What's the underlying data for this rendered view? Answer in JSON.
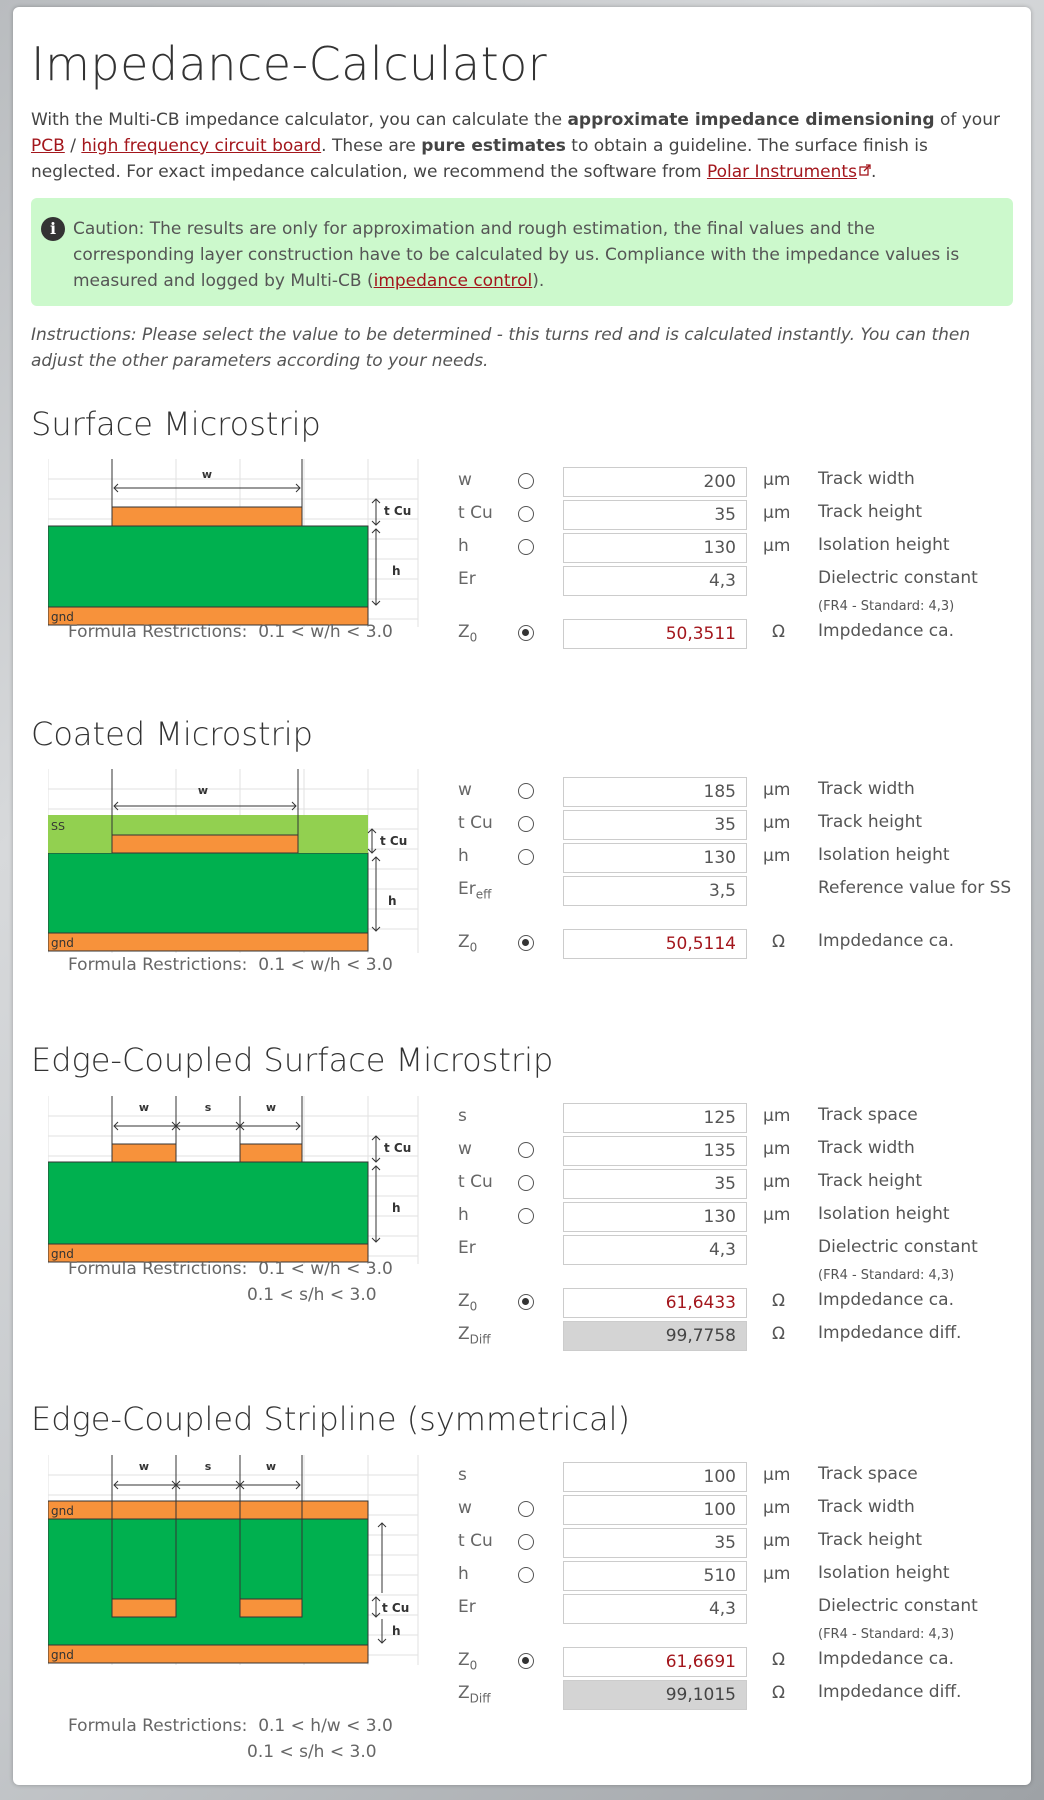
{
  "title": "Impedance-Calculator",
  "intro": {
    "p1": "With the Multi-CB impedance calculator, you can calculate the ",
    "b1": "approximate impedance dimensioning",
    "p2": " of your ",
    "link_pcb": "PCB",
    "sep": " / ",
    "link_hf": "high frequency circuit board",
    "p3": ". These are ",
    "b2": "pure estimates",
    "p4": " to obtain a guideline. The surface finish is neglected. For exact impedance calculation, we recommend the software from ",
    "link_polar": "Polar Instruments",
    "p5": "."
  },
  "alert": {
    "text": "Caution: The results are only for approximation and rough estimation, the final values and the corresponding layer construction have to be calculated by us. Compliance with the impedance values is measured and logged by Multi-CB (",
    "link": "impedance control",
    "end": ")."
  },
  "instructions": "Instructions: Please select the value to be determined - this turns red and is calculated instantly. You can then adjust the other parameters according to your needs.",
  "colors": {
    "copper": "#f7923b",
    "dielectric": "#00b04f",
    "soldermask": "#92d050",
    "result": "#a3161c",
    "alert_bg": "#ccf9cc"
  },
  "diagram_labels": {
    "w": "w",
    "s": "s",
    "tcu": "t Cu",
    "h": "h",
    "gnd": "gnd",
    "ss": "SS"
  },
  "restrictions_label": "Formula Restrictions:",
  "sections": {
    "surface": {
      "title": "Surface Microstrip",
      "restrict1": "0.1 < w/h < 3.0",
      "w": {
        "sym": "w",
        "value": "200",
        "unit": "µm",
        "label": "Track width"
      },
      "t": {
        "sym": "t Cu",
        "value": "35",
        "unit": "µm",
        "label": "Track height"
      },
      "h": {
        "sym": "h",
        "value": "130",
        "unit": "µm",
        "label": "Isolation height"
      },
      "er": {
        "sym": "Er",
        "value": "4,3",
        "label": "Dielectric constant",
        "note": "(FR4 - Standard: 4,3)"
      },
      "z0": {
        "sym": "Z",
        "sub": "0",
        "value": "50,3511",
        "unit": "Ω",
        "label": "Impdedance ca."
      }
    },
    "coated": {
      "title": "Coated Microstrip",
      "restrict1": "0.1 < w/h < 3.0",
      "w": {
        "sym": "w",
        "value": "185",
        "unit": "µm",
        "label": "Track width"
      },
      "t": {
        "sym": "t Cu",
        "value": "35",
        "unit": "µm",
        "label": "Track height"
      },
      "h": {
        "sym": "h",
        "value": "130",
        "unit": "µm",
        "label": "Isolation height"
      },
      "er": {
        "sym": "Er",
        "sub": "eff",
        "value": "3,5",
        "label": "Reference value for SS"
      },
      "z0": {
        "sym": "Z",
        "sub": "0",
        "value": "50,5114",
        "unit": "Ω",
        "label": "Impdedance ca."
      }
    },
    "edge_surface": {
      "title": "Edge-Coupled Surface Microstrip",
      "restrict1": "0.1 < w/h < 3.0",
      "restrict2": "0.1 < s/h < 3.0",
      "s": {
        "sym": "s",
        "value": "125",
        "unit": "µm",
        "label": "Track space"
      },
      "w": {
        "sym": "w",
        "value": "135",
        "unit": "µm",
        "label": "Track width"
      },
      "t": {
        "sym": "t Cu",
        "value": "35",
        "unit": "µm",
        "label": "Track height"
      },
      "h": {
        "sym": "h",
        "value": "130",
        "unit": "µm",
        "label": "Isolation height"
      },
      "er": {
        "sym": "Er",
        "value": "4,3",
        "label": "Dielectric constant",
        "note": "(FR4 - Standard: 4,3)"
      },
      "z0": {
        "sym": "Z",
        "sub": "0",
        "value": "61,6433",
        "unit": "Ω",
        "label": "Impdedance ca."
      },
      "zdiff": {
        "sym": "Z",
        "sub": "Diff",
        "value": "99,7758",
        "unit": "Ω",
        "label": "Impdedance diff."
      }
    },
    "stripline": {
      "title": "Edge-Coupled Stripline (symmetrical)",
      "restrict1": "0.1 < h/w < 3.0",
      "restrict2": "0.1 < s/h < 3.0",
      "s": {
        "sym": "s",
        "value": "100",
        "unit": "µm",
        "label": "Track space"
      },
      "w": {
        "sym": "w",
        "value": "100",
        "unit": "µm",
        "label": "Track width"
      },
      "t": {
        "sym": "t Cu",
        "value": "35",
        "unit": "µm",
        "label": "Track height"
      },
      "h": {
        "sym": "h",
        "value": "510",
        "unit": "µm",
        "label": "Isolation height"
      },
      "er": {
        "sym": "Er",
        "value": "4,3",
        "label": "Dielectric constant",
        "note": "(FR4 - Standard: 4,3)"
      },
      "z0": {
        "sym": "Z",
        "sub": "0",
        "value": "61,6691",
        "unit": "Ω",
        "label": "Impdedance ca."
      },
      "zdiff": {
        "sym": "Z",
        "sub": "Diff",
        "value": "99,1015",
        "unit": "Ω",
        "label": "Impdedance diff."
      }
    }
  }
}
